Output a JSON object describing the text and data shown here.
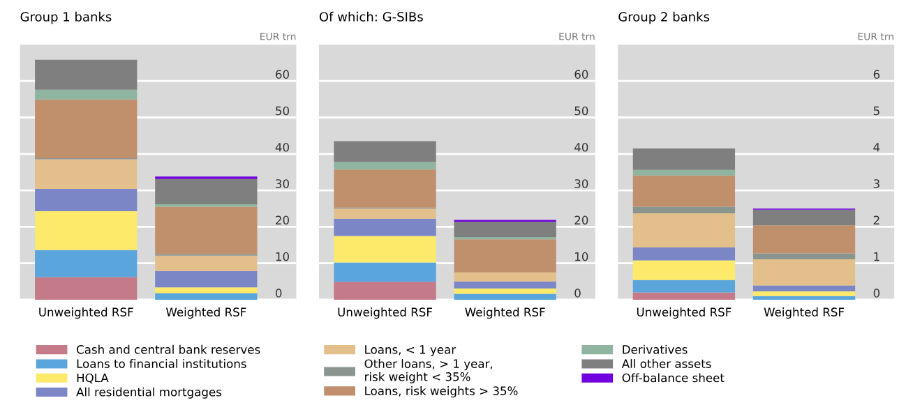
{
  "chart_data": [
    {
      "type": "bar",
      "title": "Group 1 banks",
      "ylabel": "EUR trn",
      "stacked": true,
      "categories": [
        "Unweighted RSF",
        "Weighted RSF"
      ],
      "ylim": [
        0,
        70
      ],
      "yticks": [
        0,
        10,
        20,
        30,
        40,
        50,
        60
      ],
      "grid": "y",
      "legend": "bottom",
      "series": [
        {
          "name": "Cash and central bank reserves",
          "color": "#c47a88",
          "values": [
            6.2,
            0
          ]
        },
        {
          "name": "Loans to financial institutions",
          "color": "#5aa5dc",
          "values": [
            7.4,
            1.8
          ]
        },
        {
          "name": "HQLA",
          "color": "#fde96a",
          "values": [
            10.7,
            1.6
          ]
        },
        {
          "name": "All residential mortgages",
          "color": "#7b86c6",
          "values": [
            6.1,
            4.5
          ]
        },
        {
          "name": "Loans, < 1 year",
          "color": "#e3c08b",
          "values": [
            8.1,
            4.2
          ]
        },
        {
          "name": "Other loans, > 1 year,\nrisk weight < 35%",
          "color": "#8a9590",
          "values": [
            0.3,
            0.4
          ]
        },
        {
          "name": "Loans, risk weights > 35%",
          "color": "#c08f6c",
          "values": [
            16.1,
            13.0
          ]
        },
        {
          "name": "Derivatives",
          "color": "#8fb5a0",
          "values": [
            2.7,
            0.7
          ]
        },
        {
          "name": "All other assets",
          "color": "#7f7f7f",
          "values": [
            8.2,
            6.9
          ]
        },
        {
          "name": "Off-balance sheet",
          "color": "#7000e0",
          "values": [
            0,
            0.7
          ]
        }
      ]
    },
    {
      "type": "bar",
      "title": "Of which: G-SIBs",
      "ylabel": "EUR trn",
      "stacked": true,
      "categories": [
        "Unweighted RSF",
        "Weighted RSF"
      ],
      "ylim": [
        0,
        70
      ],
      "yticks": [
        0,
        10,
        20,
        30,
        40,
        50,
        60
      ],
      "grid": "y",
      "series": [
        {
          "color": "#c47a88",
          "values": [
            4.9,
            0
          ]
        },
        {
          "color": "#5aa5dc",
          "values": [
            5.3,
            1.6
          ]
        },
        {
          "color": "#fde96a",
          "values": [
            7.3,
            1.5
          ]
        },
        {
          "color": "#7b86c6",
          "values": [
            4.7,
            1.9
          ]
        },
        {
          "color": "#e3c08b",
          "values": [
            2.8,
            2.5
          ]
        },
        {
          "color": "#8a9590",
          "values": [
            0.3,
            0
          ]
        },
        {
          "color": "#c08f6c",
          "values": [
            10.4,
            9.1
          ]
        },
        {
          "color": "#8fb5a0",
          "values": [
            2.1,
            0.6
          ]
        },
        {
          "color": "#7f7f7f",
          "values": [
            5.7,
            4.2
          ]
        },
        {
          "color": "#7000e0",
          "values": [
            0,
            0.5
          ]
        }
      ]
    },
    {
      "type": "bar",
      "title": "Group 2 banks",
      "ylabel": "EUR trn",
      "stacked": true,
      "categories": [
        "Unweighted RSF",
        "Weighted RSF"
      ],
      "ylim": [
        0,
        7
      ],
      "yticks": [
        0,
        1,
        2,
        3,
        4,
        5,
        6
      ],
      "grid": "y",
      "series": [
        {
          "color": "#c47a88",
          "values": [
            0.2,
            0
          ]
        },
        {
          "color": "#5aa5dc",
          "values": [
            0.34,
            0.1
          ]
        },
        {
          "color": "#fde96a",
          "values": [
            0.54,
            0.13
          ]
        },
        {
          "color": "#7b86c6",
          "values": [
            0.36,
            0.16
          ]
        },
        {
          "color": "#e3c08b",
          "values": [
            0.93,
            0.72
          ]
        },
        {
          "color": "#8a9590",
          "values": [
            0.18,
            0.16
          ]
        },
        {
          "color": "#c08f6c",
          "values": [
            0.86,
            0.77
          ]
        },
        {
          "color": "#8fb5a0",
          "values": [
            0.15,
            0
          ]
        },
        {
          "color": "#7f7f7f",
          "values": [
            0.59,
            0.43
          ]
        },
        {
          "color": "#7000e0",
          "values": [
            0,
            0.03
          ]
        }
      ]
    }
  ]
}
